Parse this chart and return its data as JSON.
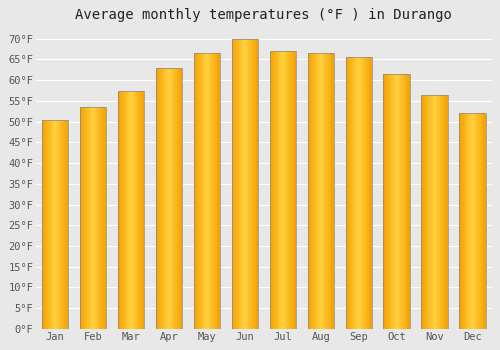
{
  "title": "Average monthly temperatures (°F ) in Durango",
  "months": [
    "Jan",
    "Feb",
    "Mar",
    "Apr",
    "May",
    "Jun",
    "Jul",
    "Aug",
    "Sep",
    "Oct",
    "Nov",
    "Dec"
  ],
  "values": [
    50.5,
    53.5,
    57.5,
    63,
    66.5,
    70,
    67,
    66.5,
    65.5,
    61.5,
    56.5,
    52
  ],
  "ylim": [
    0,
    72
  ],
  "yticks": [
    0,
    5,
    10,
    15,
    20,
    25,
    30,
    35,
    40,
    45,
    50,
    55,
    60,
    65,
    70
  ],
  "ytick_labels": [
    "0°F",
    "5°F",
    "10°F",
    "15°F",
    "20°F",
    "25°F",
    "30°F",
    "35°F",
    "40°F",
    "45°F",
    "50°F",
    "55°F",
    "60°F",
    "65°F",
    "70°F"
  ],
  "background_color": "#e8e8e8",
  "plot_bg_color": "#e8e8e8",
  "grid_color": "#ffffff",
  "title_fontsize": 10,
  "tick_fontsize": 7.5,
  "bar_color_center": "#FFD040",
  "bar_color_edge": "#F5A000",
  "bar_border_color": "#888888",
  "bar_width": 0.7
}
